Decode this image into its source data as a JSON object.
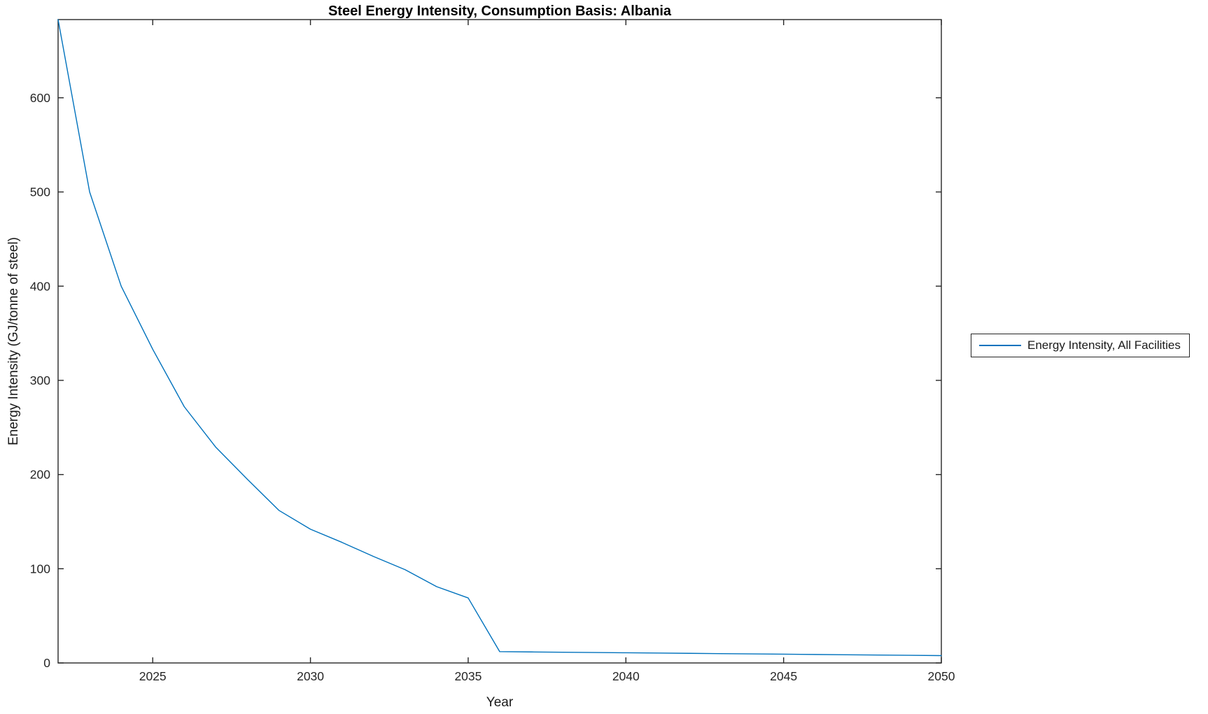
{
  "title": "Steel Energy Intensity, Consumption Basis: Albania",
  "colors": {
    "series_line": "#0072BD",
    "axis": "#262626",
    "tick_label": "#262626",
    "title_text": "#000000",
    "background": "#ffffff"
  },
  "chart_data": {
    "type": "line",
    "title": "Steel Energy Intensity, Consumption Basis: Albania",
    "xlabel": "Year",
    "ylabel": "Energy Intensity (GJ/tonne of steel)",
    "xlim": [
      2022,
      2050
    ],
    "ylim": [
      0,
      683
    ],
    "xticks": [
      2025,
      2030,
      2035,
      2040,
      2045,
      2050
    ],
    "yticks": [
      0,
      100,
      200,
      300,
      400,
      500,
      600
    ],
    "grid": false,
    "box": true,
    "tick_direction": "in",
    "legend": {
      "position": "outside-right",
      "entries": [
        "Energy Intensity, All Facilities"
      ]
    },
    "series": [
      {
        "name": "Energy Intensity, All Facilities",
        "color": "#0072BD",
        "x": [
          2022,
          2023,
          2024,
          2025,
          2026,
          2027,
          2028,
          2029,
          2030,
          2031,
          2032,
          2033,
          2034,
          2035,
          2036,
          2037,
          2038,
          2039,
          2040,
          2041,
          2042,
          2043,
          2044,
          2045,
          2046,
          2047,
          2048,
          2049,
          2050
        ],
        "y": [
          683,
          500,
          400,
          333,
          272,
          229,
          195,
          162,
          142,
          128,
          113,
          99,
          81,
          69,
          12,
          11.7,
          11.4,
          11.1,
          10.8,
          10.5,
          10.2,
          9.9,
          9.6,
          9.3,
          9.0,
          8.7,
          8.4,
          8.1,
          7.8
        ]
      }
    ]
  }
}
